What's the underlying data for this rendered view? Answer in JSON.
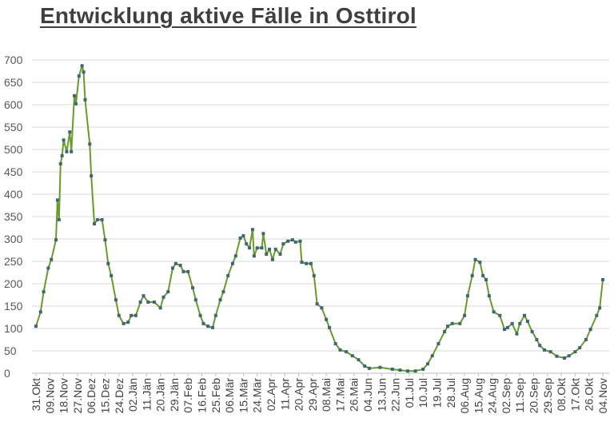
{
  "chart_data": {
    "type": "line",
    "title": "Entwicklung aktive Fälle in Osttirol",
    "xlabel": "",
    "ylabel": "",
    "ylim": [
      0,
      700
    ],
    "y_ticks": [
      0,
      50,
      100,
      150,
      200,
      250,
      300,
      350,
      400,
      450,
      500,
      550,
      600,
      650,
      700
    ],
    "grid": "horizontal",
    "legend": "none",
    "colors": {
      "line": "#6a9a2c",
      "marker": "#3e6674",
      "grid": "#d9d9d9",
      "axis": "#bfbfbf"
    },
    "x_tick_labels": [
      "31.Okt",
      "09.Nov",
      "18.Nov",
      "27.Nov",
      "06.Dez",
      "15.Dez",
      "24.Dez",
      "02.Jän",
      "11.Jän",
      "20.Jän",
      "29.Jän",
      "07.Feb",
      "16.Feb",
      "25.Feb",
      "06.Mär",
      "15.Mär",
      "24.Mär",
      "02.Apr",
      "11.Apr",
      "20.Apr",
      "29.Apr",
      "08.Mai",
      "17.Mai",
      "26.Mai",
      "04.Jun",
      "13.Jun",
      "22.Jun",
      "01.Jul",
      "10.Jul",
      "19.Jul",
      "28.Jul",
      "06.Aug",
      "15.Aug",
      "24.Aug",
      "02.Sep",
      "11.Sep",
      "20.Sep",
      "29.Sep",
      "08.Okt",
      "17.Okt",
      "26.Okt",
      "04.Nov"
    ],
    "series": [
      {
        "x": [
          "31.10",
          "03.11",
          "05.11",
          "08.11",
          "10.11",
          "13.11",
          "14.11",
          "15.11",
          "16.11",
          "17.11",
          "18.11",
          "20.11",
          "22.11",
          "23.11",
          "25.11",
          "26.11",
          "28.11",
          "30.11",
          "01.12",
          "02.12",
          "05.12",
          "06.12",
          "08.12",
          "10.12",
          "13.12",
          "15.12",
          "17.12",
          "19.12",
          "22.12",
          "24.12",
          "27.12",
          "30.12",
          "01.01",
          "04.01",
          "07.01",
          "09.01",
          "12.01",
          "16.01",
          "20.01",
          "22.01",
          "25.01",
          "28.01",
          "30.01",
          "02.02",
          "04.02",
          "07.02",
          "10.02",
          "12.02",
          "15.02",
          "17.02",
          "20.02",
          "23.02",
          "25.02",
          "28.02",
          "02.03",
          "05.03",
          "08.03",
          "10.03",
          "13.03",
          "15.03",
          "17.03",
          "19.03",
          "21.03",
          "22.03",
          "24.03",
          "27.03",
          "28.03",
          "30.03",
          "01.04",
          "03.04",
          "05.04",
          "08.04",
          "10.04",
          "13.04",
          "16.04",
          "18.04",
          "21.04",
          "22.04",
          "25.04",
          "28.04",
          "30.04",
          "02.05",
          "05.05",
          "08.05",
          "10.05",
          "14.05",
          "17.05",
          "21.05",
          "25.05",
          "29.05",
          "02.06",
          "05.06",
          "12.06",
          "20.06",
          "25.06",
          "30.06",
          "05.07",
          "10.07",
          "13.07",
          "16.07",
          "20.07",
          "24.07",
          "26.07",
          "29.07",
          "03.08",
          "06.08",
          "08.08",
          "11.08",
          "13.08",
          "16.08",
          "18.08",
          "20.08",
          "22.08",
          "25.08",
          "29.08",
          "01.09",
          "03.09",
          "06.09",
          "09.09",
          "11.09",
          "14.09",
          "16.09",
          "19.09",
          "22.09",
          "24.09",
          "27.09",
          "01.10",
          "05.10",
          "10.10",
          "13.10",
          "17.10",
          "20.10",
          "24.10",
          "27.10",
          "31.10",
          "02.11",
          "04.11"
        ],
        "y": [
          105,
          137,
          182,
          235,
          254,
          298,
          387,
          343,
          468,
          486,
          521,
          495,
          539,
          495,
          620,
          602,
          664,
          687,
          673,
          611,
          512,
          441,
          334,
          343,
          343,
          298,
          245,
          218,
          164,
          129,
          111,
          114,
          129,
          129,
          159,
          173,
          159,
          159,
          146,
          170,
          182,
          235,
          245,
          241,
          227,
          227,
          191,
          164,
          129,
          111,
          105,
          102,
          129,
          164,
          182,
          218,
          245,
          262,
          302,
          307,
          289,
          280,
          321,
          262,
          280,
          280,
          312,
          266,
          277,
          254,
          277,
          266,
          289,
          295,
          298,
          293,
          295,
          248,
          245,
          245,
          218,
          155,
          146,
          120,
          102,
          66,
          52,
          48,
          39,
          30,
          16,
          11,
          13,
          9,
          7,
          5,
          5,
          9,
          21,
          39,
          66,
          93,
          105,
          111,
          111,
          129,
          173,
          218,
          254,
          248,
          218,
          209,
          173,
          137,
          129,
          98,
          102,
          111,
          88,
          111,
          129,
          116,
          93,
          75,
          62,
          52,
          48,
          38,
          34,
          39,
          48,
          57,
          75,
          98,
          129,
          146,
          209
        ]
      }
    ]
  }
}
